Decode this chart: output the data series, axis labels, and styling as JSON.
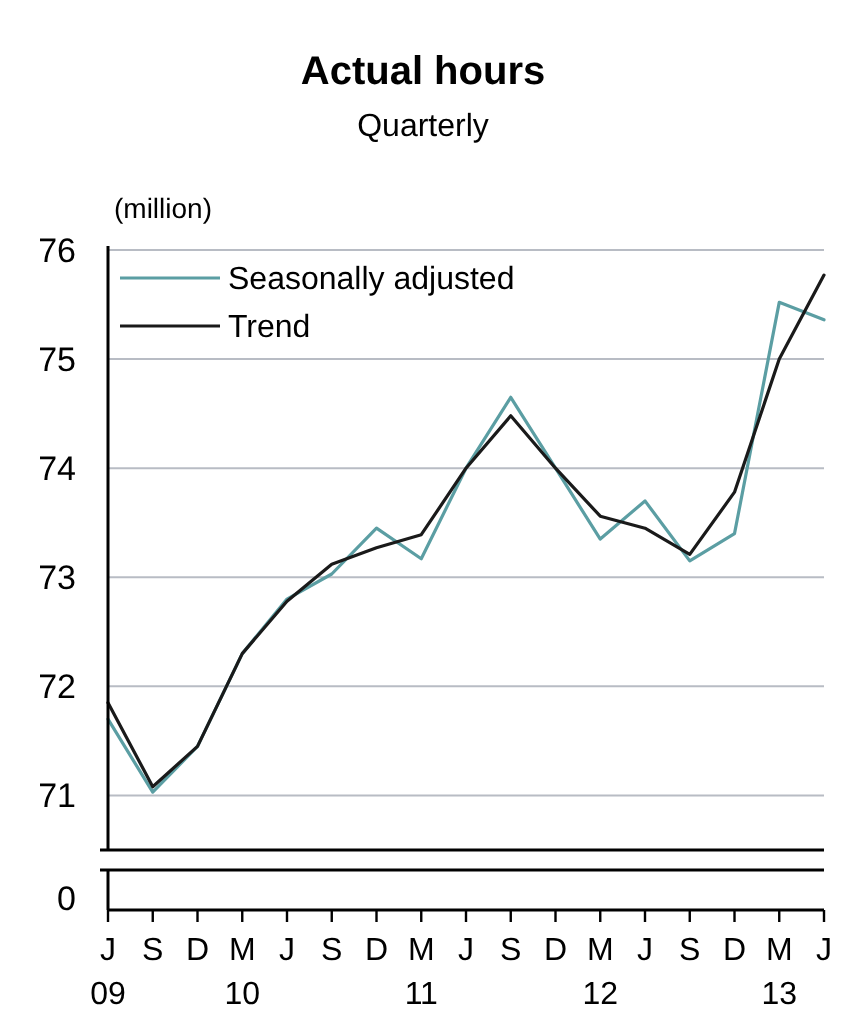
{
  "chart_data": {
    "type": "line",
    "title": "Actual hours",
    "subtitle": "Quarterly",
    "ylabel": "(million)",
    "categories": [
      "J\n09",
      "S",
      "D",
      "M\n10",
      "J",
      "S",
      "D",
      "M\n11",
      "J",
      "S",
      "D",
      "M\n12",
      "J",
      "S",
      "D",
      "M\n13",
      "J"
    ],
    "series": [
      {
        "name": "Seasonally adjusted",
        "color": "#5b9ea3",
        "values": [
          71.7,
          71.03,
          71.45,
          72.3,
          72.8,
          73.03,
          73.45,
          73.17,
          74.0,
          74.65,
          74.0,
          73.35,
          73.7,
          73.15,
          73.4,
          75.52,
          75.36
        ]
      },
      {
        "name": "Trend",
        "color": "#1a1a1a",
        "values": [
          71.85,
          71.08,
          71.45,
          72.3,
          72.78,
          73.12,
          73.27,
          73.39,
          74.0,
          74.48,
          74.0,
          73.56,
          73.45,
          73.21,
          73.78,
          75.0,
          75.77
        ]
      }
    ],
    "ylim": [
      70.5,
      76
    ],
    "yticks": [
      71,
      72,
      73,
      74,
      75,
      76
    ],
    "grid": "y",
    "legend": "top left",
    "marker": "none",
    "line_style": "solid",
    "annotations": [
      "0"
    ]
  }
}
